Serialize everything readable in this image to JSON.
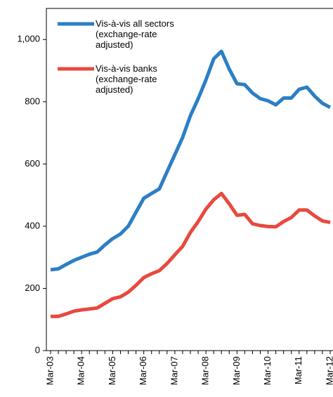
{
  "chart_data": {
    "type": "line",
    "categories": [
      "Mar-03",
      null,
      null,
      null,
      "Mar-04",
      null,
      null,
      null,
      "Mar-05",
      null,
      null,
      null,
      "Mar-06",
      null,
      null,
      null,
      "Mar-07",
      null,
      null,
      null,
      "Mar-08",
      null,
      null,
      null,
      "Mar-09",
      null,
      null,
      null,
      "Mar-10",
      null,
      null,
      null,
      "Mar-11",
      null,
      null,
      null,
      "Mar-12"
    ],
    "series": [
      {
        "name": "Vis-à-vis all sectors (exchange-rate adjusted)",
        "color": "#2b7fc4",
        "values": [
          260,
          263,
          277,
          290,
          300,
          310,
          317,
          340,
          360,
          375,
          400,
          445,
          490,
          505,
          520,
          575,
          630,
          685,
          755,
          810,
          870,
          938,
          962,
          905,
          858,
          855,
          828,
          810,
          803,
          790,
          812,
          812,
          840,
          847,
          818,
          795,
          782
        ]
      },
      {
        "name": "Vis-à-vis banks (exchange-rate adjusted)",
        "color": "#e8493f",
        "values": [
          110,
          110,
          118,
          127,
          131,
          134,
          137,
          152,
          167,
          173,
          188,
          210,
          235,
          247,
          257,
          280,
          308,
          335,
          380,
          415,
          455,
          485,
          505,
          472,
          435,
          438,
          408,
          402,
          399,
          398,
          415,
          428,
          452,
          452,
          433,
          417,
          412
        ]
      }
    ],
    "ylim": [
      0,
      1100
    ],
    "yticks": [
      0,
      200,
      400,
      600,
      800,
      {
        "value": 1000,
        "label": "1,000"
      }
    ],
    "legend": "upper left"
  }
}
